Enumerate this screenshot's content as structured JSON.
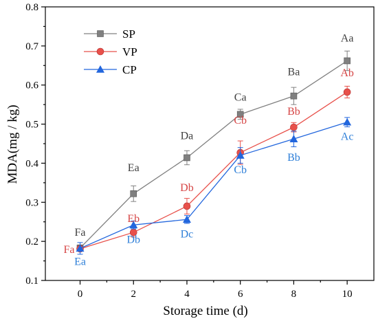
{
  "chart_data": {
    "type": "line",
    "xlabel": "Storage time (d)",
    "ylabel": "MDA(mg / kg)",
    "x": [
      0,
      2,
      4,
      6,
      8,
      10
    ],
    "xlim": [
      -1.3,
      11.0
    ],
    "ylim": [
      0.1,
      0.8
    ],
    "xticks": [
      "0",
      "2",
      "4",
      "6",
      "8",
      "10"
    ],
    "yticks": [
      "0.1",
      "0.2",
      "0.3",
      "0.4",
      "0.5",
      "0.6",
      "0.7",
      "0.8"
    ],
    "grid": false,
    "legend_position": "top-left",
    "series": [
      {
        "name": "SP",
        "color": "#808080",
        "marker": "square",
        "values": [
          0.183,
          0.322,
          0.414,
          0.525,
          0.572,
          0.662
        ],
        "errors": [
          0.008,
          0.02,
          0.018,
          0.013,
          0.022,
          0.025
        ],
        "labels": [
          "Fa",
          "Ea",
          "Da",
          "Ca",
          "Ba",
          "Aa"
        ],
        "label_color": "#404040"
      },
      {
        "name": "VP",
        "color": "#e8504a",
        "marker": "circle",
        "values": [
          0.181,
          0.223,
          0.29,
          0.427,
          0.492,
          0.582
        ],
        "errors": [
          0.005,
          0.012,
          0.02,
          0.03,
          0.012,
          0.015
        ],
        "labels": [
          "Fa",
          "Eb",
          "Db",
          "Cb",
          "Bb",
          "Ab"
        ],
        "label_color": "#d64545"
      },
      {
        "name": "CP",
        "color": "#2266dd",
        "marker": "triangle",
        "values": [
          0.182,
          0.242,
          0.256,
          0.42,
          0.462,
          0.505
        ],
        "errors": [
          0.015,
          0.01,
          0.01,
          0.02,
          0.02,
          0.012
        ],
        "labels": [
          "Ea",
          "Db",
          "Dc",
          "Cb",
          "Bb",
          "Ac"
        ],
        "label_color": "#2e7fd8"
      }
    ]
  }
}
